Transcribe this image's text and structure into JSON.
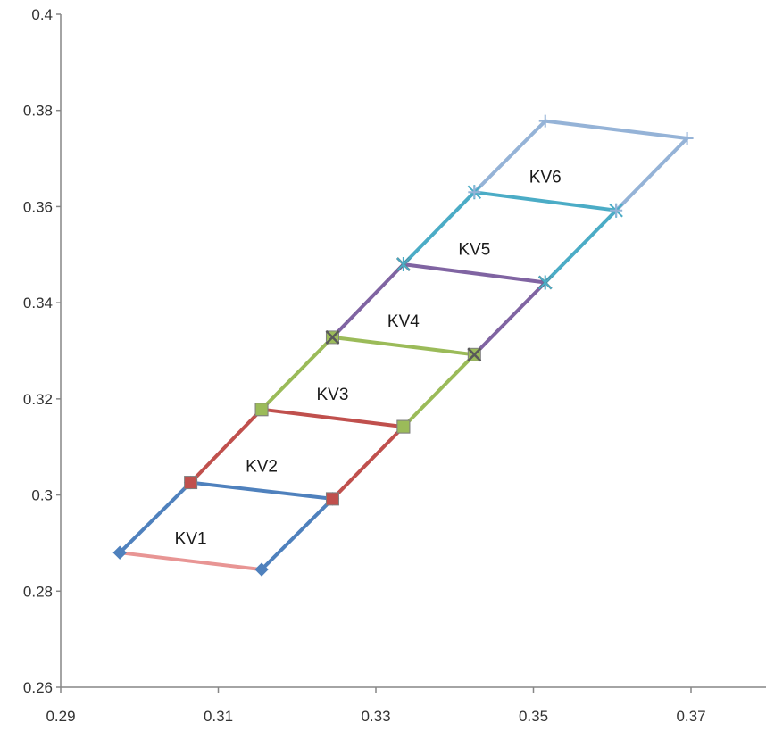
{
  "chart_data": {
    "type": "line",
    "title": "",
    "xlabel": "",
    "ylabel": "",
    "xlim": [
      0.29,
      0.38
    ],
    "ylim": [
      0.26,
      0.4
    ],
    "x_ticks": [
      "0.29",
      "0.31",
      "0.33",
      "0.35",
      "0.37"
    ],
    "y_ticks": [
      "0.26",
      "0.28",
      "0.3",
      "0.32",
      "0.34",
      "0.36",
      "0.38",
      "0.4"
    ],
    "grid": false,
    "legend": "none",
    "series": [
      {
        "color": "#4f81bd",
        "marker": "diamond",
        "points": [
          [
            0.2975,
            0.288
          ],
          [
            0.3065,
            0.3026
          ],
          [
            0.3245,
            0.2992
          ],
          [
            0.3155,
            0.2845
          ]
        ]
      },
      {
        "color": "#e89594",
        "marker": "none",
        "points": [
          [
            0.2975,
            0.288
          ],
          [
            0.3155,
            0.2845
          ]
        ]
      },
      {
        "color": "#c0504d",
        "marker": "square",
        "points": [
          [
            0.3065,
            0.3026
          ],
          [
            0.3155,
            0.3178
          ],
          [
            0.3335,
            0.3142
          ],
          [
            0.3245,
            0.2992
          ]
        ]
      },
      {
        "color": "#9bbb59",
        "marker": "square",
        "points": [
          [
            0.3155,
            0.3178
          ],
          [
            0.3245,
            0.3328
          ],
          [
            0.3425,
            0.3292
          ],
          [
            0.3335,
            0.3142
          ]
        ]
      },
      {
        "color": "#8064a2",
        "marker": "x",
        "points": [
          [
            0.3245,
            0.3328
          ],
          [
            0.3335,
            0.348
          ],
          [
            0.3515,
            0.3442
          ],
          [
            0.3425,
            0.3292
          ]
        ]
      },
      {
        "color": "#4bacc6",
        "marker": "star",
        "points": [
          [
            0.3335,
            0.348
          ],
          [
            0.3425,
            0.363
          ],
          [
            0.3605,
            0.3592
          ],
          [
            0.3515,
            0.3442
          ]
        ]
      },
      {
        "color": "#95b3d7",
        "marker": "plus",
        "points": [
          [
            0.3425,
            0.363
          ],
          [
            0.3515,
            0.3778
          ],
          [
            0.3695,
            0.3742
          ],
          [
            0.3605,
            0.3592
          ]
        ]
      }
    ],
    "annotations": [
      {
        "text": "KV1",
        "x": 0.3065,
        "y": 0.2911
      },
      {
        "text": "KV2",
        "x": 0.3155,
        "y": 0.3061
      },
      {
        "text": "KV3",
        "x": 0.3245,
        "y": 0.3211
      },
      {
        "text": "KV4",
        "x": 0.3335,
        "y": 0.3363
      },
      {
        "text": "KV5",
        "x": 0.3425,
        "y": 0.3513
      },
      {
        "text": "KV6",
        "x": 0.3515,
        "y": 0.3663
      }
    ]
  }
}
